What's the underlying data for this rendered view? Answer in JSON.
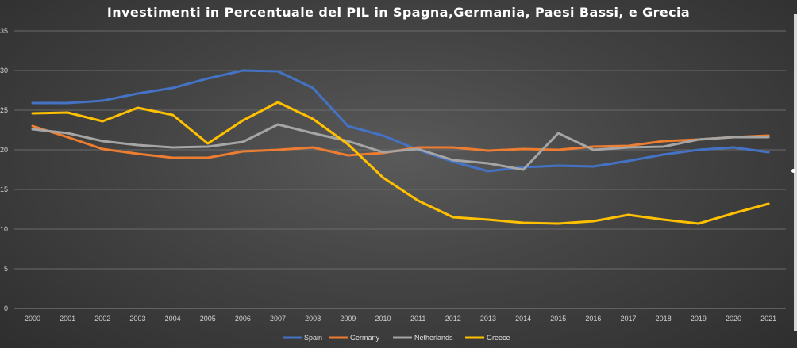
{
  "chart_data": {
    "type": "line",
    "title": "Investimenti in Percentuale del PIL in Spagna,Germania, Paesi Bassi, e Grecia",
    "xlabel": "",
    "ylabel": "",
    "ylim": [
      0,
      35
    ],
    "yticks": [
      "0",
      "5",
      "10",
      "15",
      "20",
      "25",
      "30",
      "35"
    ],
    "grid": true,
    "legend_position": "bottom",
    "x": [
      "2000",
      "2001",
      "2002",
      "2003",
      "2004",
      "2005",
      "2006",
      "2007",
      "2008",
      "2009",
      "2010",
      "2011",
      "2012",
      "2013",
      "2014",
      "2015",
      "2016",
      "2017",
      "2018",
      "2019",
      "2020",
      "2021"
    ],
    "series": [
      {
        "name": "Spain",
        "color": "#4472c4",
        "values": [
          25.9,
          25.9,
          26.2,
          27.1,
          27.8,
          29.0,
          30.0,
          29.9,
          27.8,
          23.0,
          21.8,
          20.0,
          18.5,
          17.3,
          17.8,
          18.0,
          17.9,
          18.6,
          19.4,
          20.0,
          20.3,
          19.7
        ]
      },
      {
        "name": "Germany",
        "color": "#ed7d31",
        "values": [
          23.0,
          21.6,
          20.1,
          19.5,
          19.0,
          19.0,
          19.8,
          20.0,
          20.3,
          19.3,
          19.6,
          20.3,
          20.3,
          19.9,
          20.1,
          20.0,
          20.4,
          20.5,
          21.1,
          21.3,
          21.6,
          21.8
        ]
      },
      {
        "name": "Netherlands",
        "color": "#a5a5a5",
        "values": [
          22.6,
          22.1,
          21.1,
          20.6,
          20.3,
          20.4,
          21.0,
          23.2,
          22.1,
          21.1,
          19.7,
          20.1,
          18.7,
          18.3,
          17.5,
          22.1,
          20.0,
          20.3,
          20.4,
          21.3,
          21.6,
          21.6
        ]
      },
      {
        "name": "Greece",
        "color": "#ffc000",
        "values": [
          24.6,
          24.7,
          23.6,
          25.3,
          24.4,
          20.8,
          23.7,
          26.0,
          23.9,
          20.7,
          16.5,
          13.6,
          11.5,
          11.2,
          10.8,
          10.7,
          11.0,
          11.8,
          11.2,
          10.7,
          12.0,
          13.2
        ]
      }
    ]
  }
}
